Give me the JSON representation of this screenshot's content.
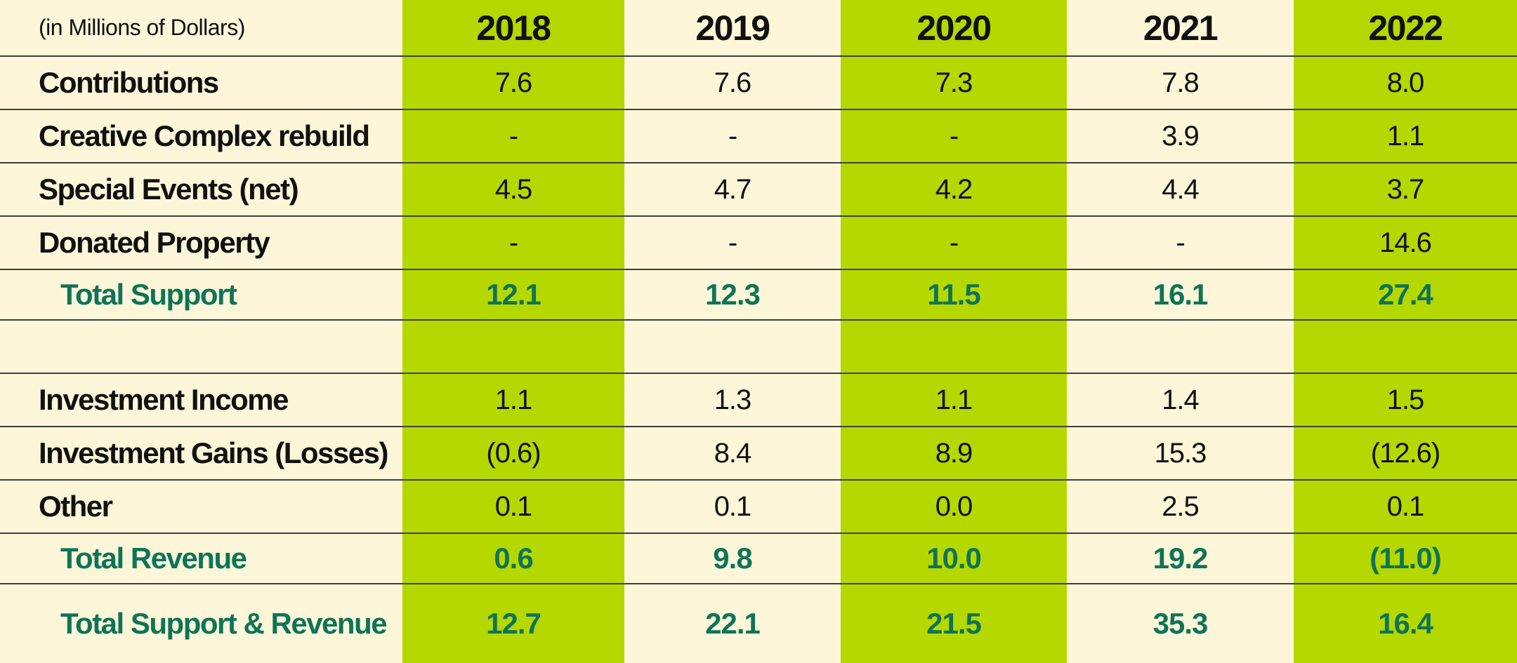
{
  "units_label": "(in Millions of Dollars)",
  "years": [
    "2018",
    "2019",
    "2020",
    "2021",
    "2022"
  ],
  "rows": [
    {
      "label": "Contributions",
      "values": [
        "7.6",
        "7.6",
        "7.3",
        "7.8",
        "8.0"
      ]
    },
    {
      "label": "Creative Complex rebuild",
      "values": [
        "-",
        "-",
        "-",
        "3.9",
        "1.1"
      ]
    },
    {
      "label": "Special Events (net)",
      "values": [
        "4.5",
        "4.7",
        "4.2",
        "4.4",
        "3.7"
      ]
    },
    {
      "label": "Donated Property",
      "values": [
        "-",
        "-",
        "-",
        "-",
        "14.6"
      ]
    },
    {
      "label": "Total Support",
      "values": [
        "12.1",
        "12.3",
        "11.5",
        "16.1",
        "27.4"
      ]
    },
    {
      "label": "",
      "values": [
        "",
        "",
        "",
        "",
        ""
      ]
    },
    {
      "label": "Investment Income",
      "values": [
        "1.1",
        "1.3",
        "1.1",
        "1.4",
        "1.5"
      ]
    },
    {
      "label": "Investment Gains (Losses)",
      "values": [
        "(0.6)",
        "8.4",
        "8.9",
        "15.3",
        "(12.6)"
      ]
    },
    {
      "label": "Other",
      "values": [
        "0.1",
        "0.1",
        "0.0",
        "2.5",
        "0.1"
      ]
    },
    {
      "label": "Total Revenue",
      "values": [
        "0.6",
        "9.8",
        "10.0",
        "19.2",
        "(11.0)"
      ]
    },
    {
      "label": "Total Support & Revenue",
      "values": [
        "12.7",
        "22.1",
        "21.5",
        "35.3",
        "16.4"
      ]
    }
  ],
  "colors": {
    "background": "#fdf6d9",
    "column_band": "#b5d800",
    "total_text": "#0e7457",
    "rule": "#3f3f3f"
  }
}
